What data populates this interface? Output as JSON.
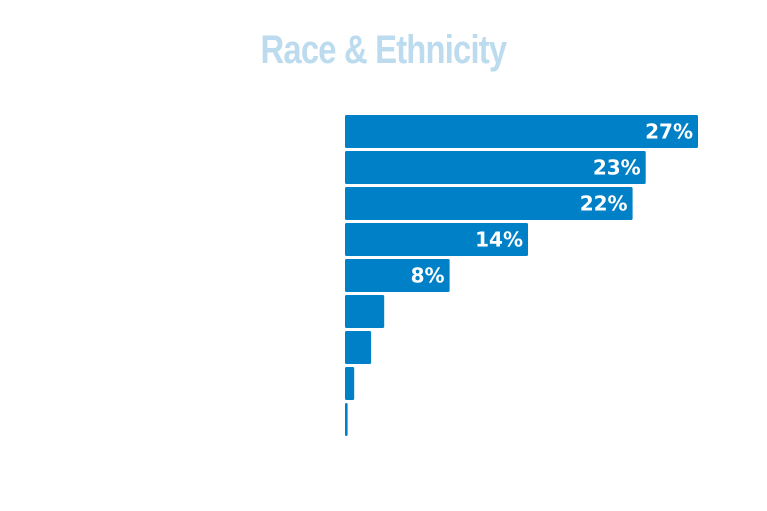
{
  "chart_data": {
    "type": "bar",
    "orientation": "horizontal",
    "title": "Race & Ethnicity",
    "categories": [
      "",
      "",
      "",
      "",
      "",
      "",
      "",
      "",
      ""
    ],
    "values": [
      27,
      23,
      22,
      14,
      8,
      3,
      2,
      0.7,
      0.2
    ],
    "data_labels": [
      "27%",
      "23%",
      "22%",
      "14%",
      "8%",
      "",
      "",
      "",
      ""
    ],
    "xlim": [
      0,
      27
    ],
    "grid": false,
    "legend": "none",
    "colors": {
      "bar": "#0080C6",
      "title": "#BCDBEE",
      "label": "#FFFFFF"
    }
  }
}
